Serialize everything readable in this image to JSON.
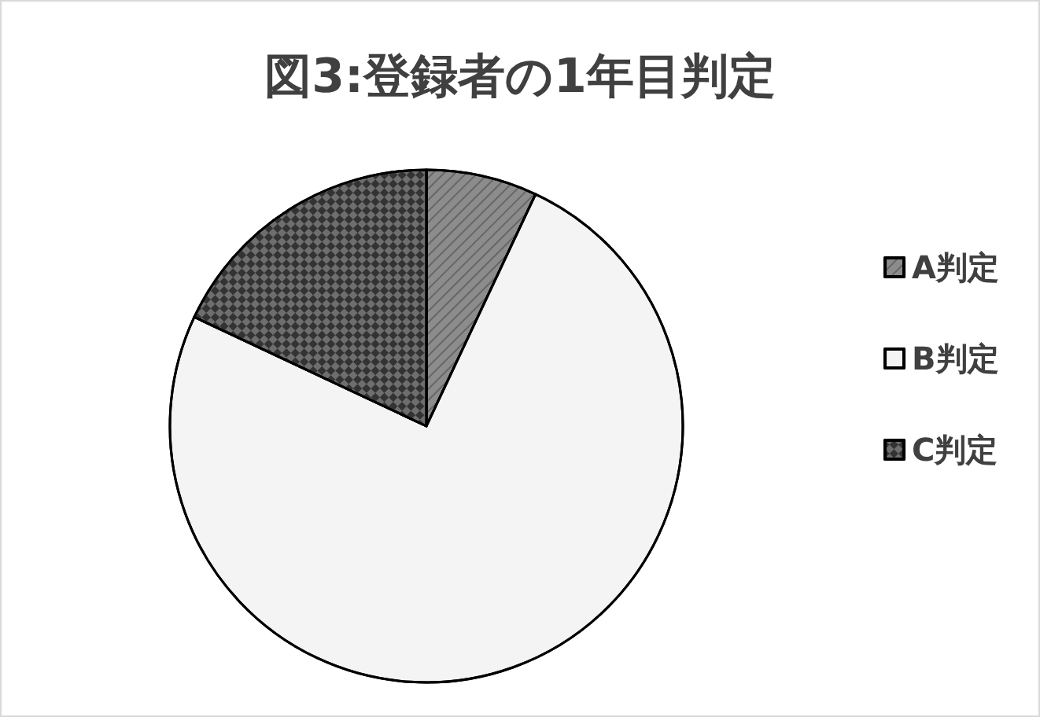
{
  "chart_data": {
    "type": "pie",
    "title": "図3:登録者の1年目判定",
    "categories": [
      "A判定",
      "B判定",
      "C判定"
    ],
    "values": [
      7,
      75,
      18
    ],
    "colors": [
      "#8c8c8c",
      "#f4f4f4",
      "#6e6e6e"
    ],
    "legend": "right"
  }
}
